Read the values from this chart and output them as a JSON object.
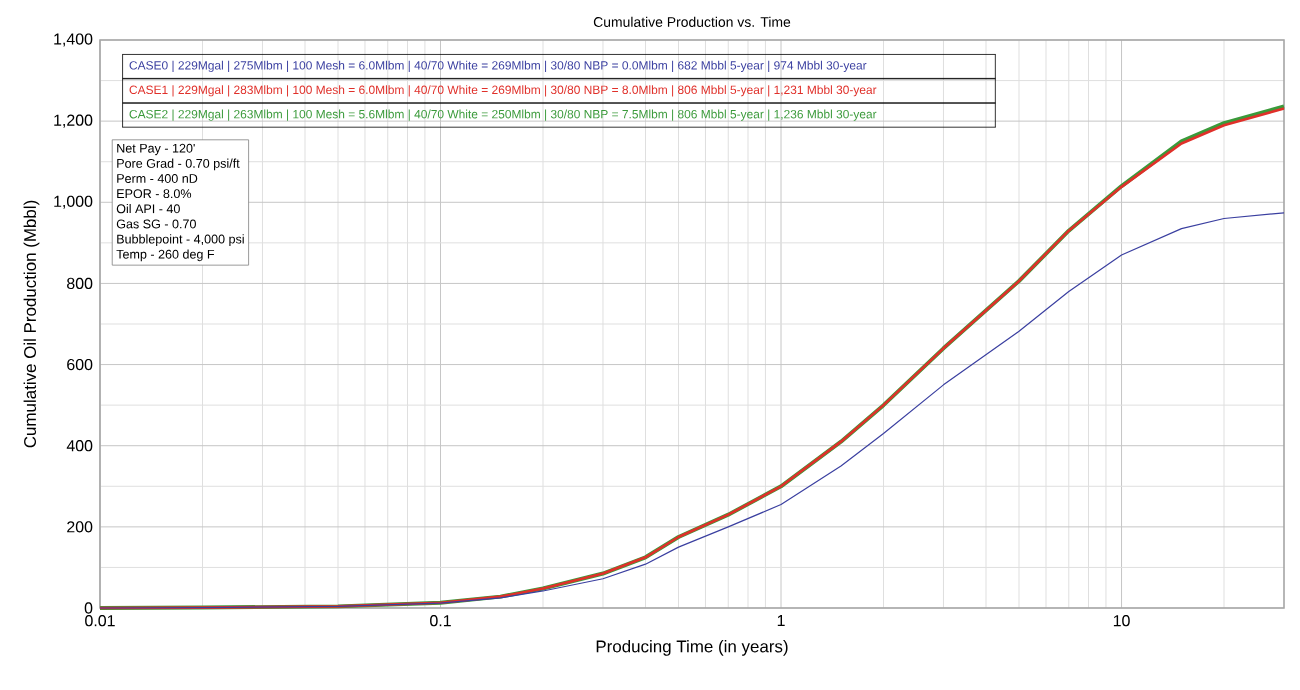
{
  "chart_data": {
    "type": "line",
    "title": "Cumulative Production vs. Time",
    "xlabel": "Producing Time (in years)",
    "ylabel": "Cumulative Oil Production (Mbbl)",
    "log": "x",
    "xlim": [
      0.01,
      30
    ],
    "xticks": [
      0.01,
      0.1,
      1,
      10
    ],
    "ylim": [
      0,
      1400
    ],
    "yticks": [
      0,
      200,
      400,
      600,
      800,
      {
        "value": 1000,
        "label": "1,000"
      },
      {
        "value": 1200,
        "label": "1,200"
      },
      {
        "value": 1400,
        "label": "1,400"
      }
    ],
    "grid": true,
    "legend": "top left",
    "marker": "none",
    "line_style": "solid",
    "x": [
      0.01,
      0.02,
      0.05,
      0.1,
      0.15,
      0.2,
      0.3,
      0.4,
      0.5,
      0.7,
      1,
      1.5,
      2,
      3,
      5,
      7,
      10,
      15,
      20,
      30
    ],
    "series": [
      {
        "name": "CASE0 | 229Mgal | 275Mlbm | 100 Mesh = 6.0Mlbm | 40/70 White = 269Mlbm | 30/80 NBP = 0.0Mlbm | 682 Mbbl 5-year | 974 Mbbl 30-year",
        "color": "#3a3fa0",
        "values": [
          0,
          1,
          4,
          12,
          25,
          42,
          72,
          108,
          150,
          200,
          255,
          350,
          430,
          550,
          682,
          780,
          870,
          935,
          960,
          974
        ]
      },
      {
        "name": "CASE1 | 229Mgal | 283Mlbm | 100 Mesh = 6.0Mlbm | 40/70 White = 269Mlbm | 30/80 NBP = 8.0Mlbm | 806 Mbbl 5-year | 1,231 Mbbl 30-year",
        "color": "#e0302a",
        "values": [
          0,
          1,
          4,
          13,
          28,
          48,
          85,
          125,
          175,
          230,
          300,
          410,
          500,
          640,
          806,
          930,
          1038,
          1145,
          1190,
          1231
        ]
      },
      {
        "name": "CASE2 | 229Mgal | 263Mlbm | 100 Mesh = 5.6Mlbm | 40/70 White = 250Mlbm | 30/80 NBP = 7.5Mlbm | 806 Mbbl 5-year | 1,236 Mbbl 30-year",
        "color": "#3a9a3a",
        "values": [
          0,
          1,
          4,
          13,
          28,
          48,
          85,
          125,
          175,
          230,
          300,
          410,
          500,
          640,
          806,
          930,
          1040,
          1150,
          1195,
          1236
        ]
      }
    ],
    "annotations": [
      "Net Pay - 120'",
      "Pore Grad - 0.70 psi/ft",
      "Perm - 400 nD",
      "EPOR - 8.0%",
      "Oil API - 40",
      "Gas SG - 0.70",
      "Bubblepoint - 4,000 psi",
      "Temp - 260 deg F"
    ]
  }
}
